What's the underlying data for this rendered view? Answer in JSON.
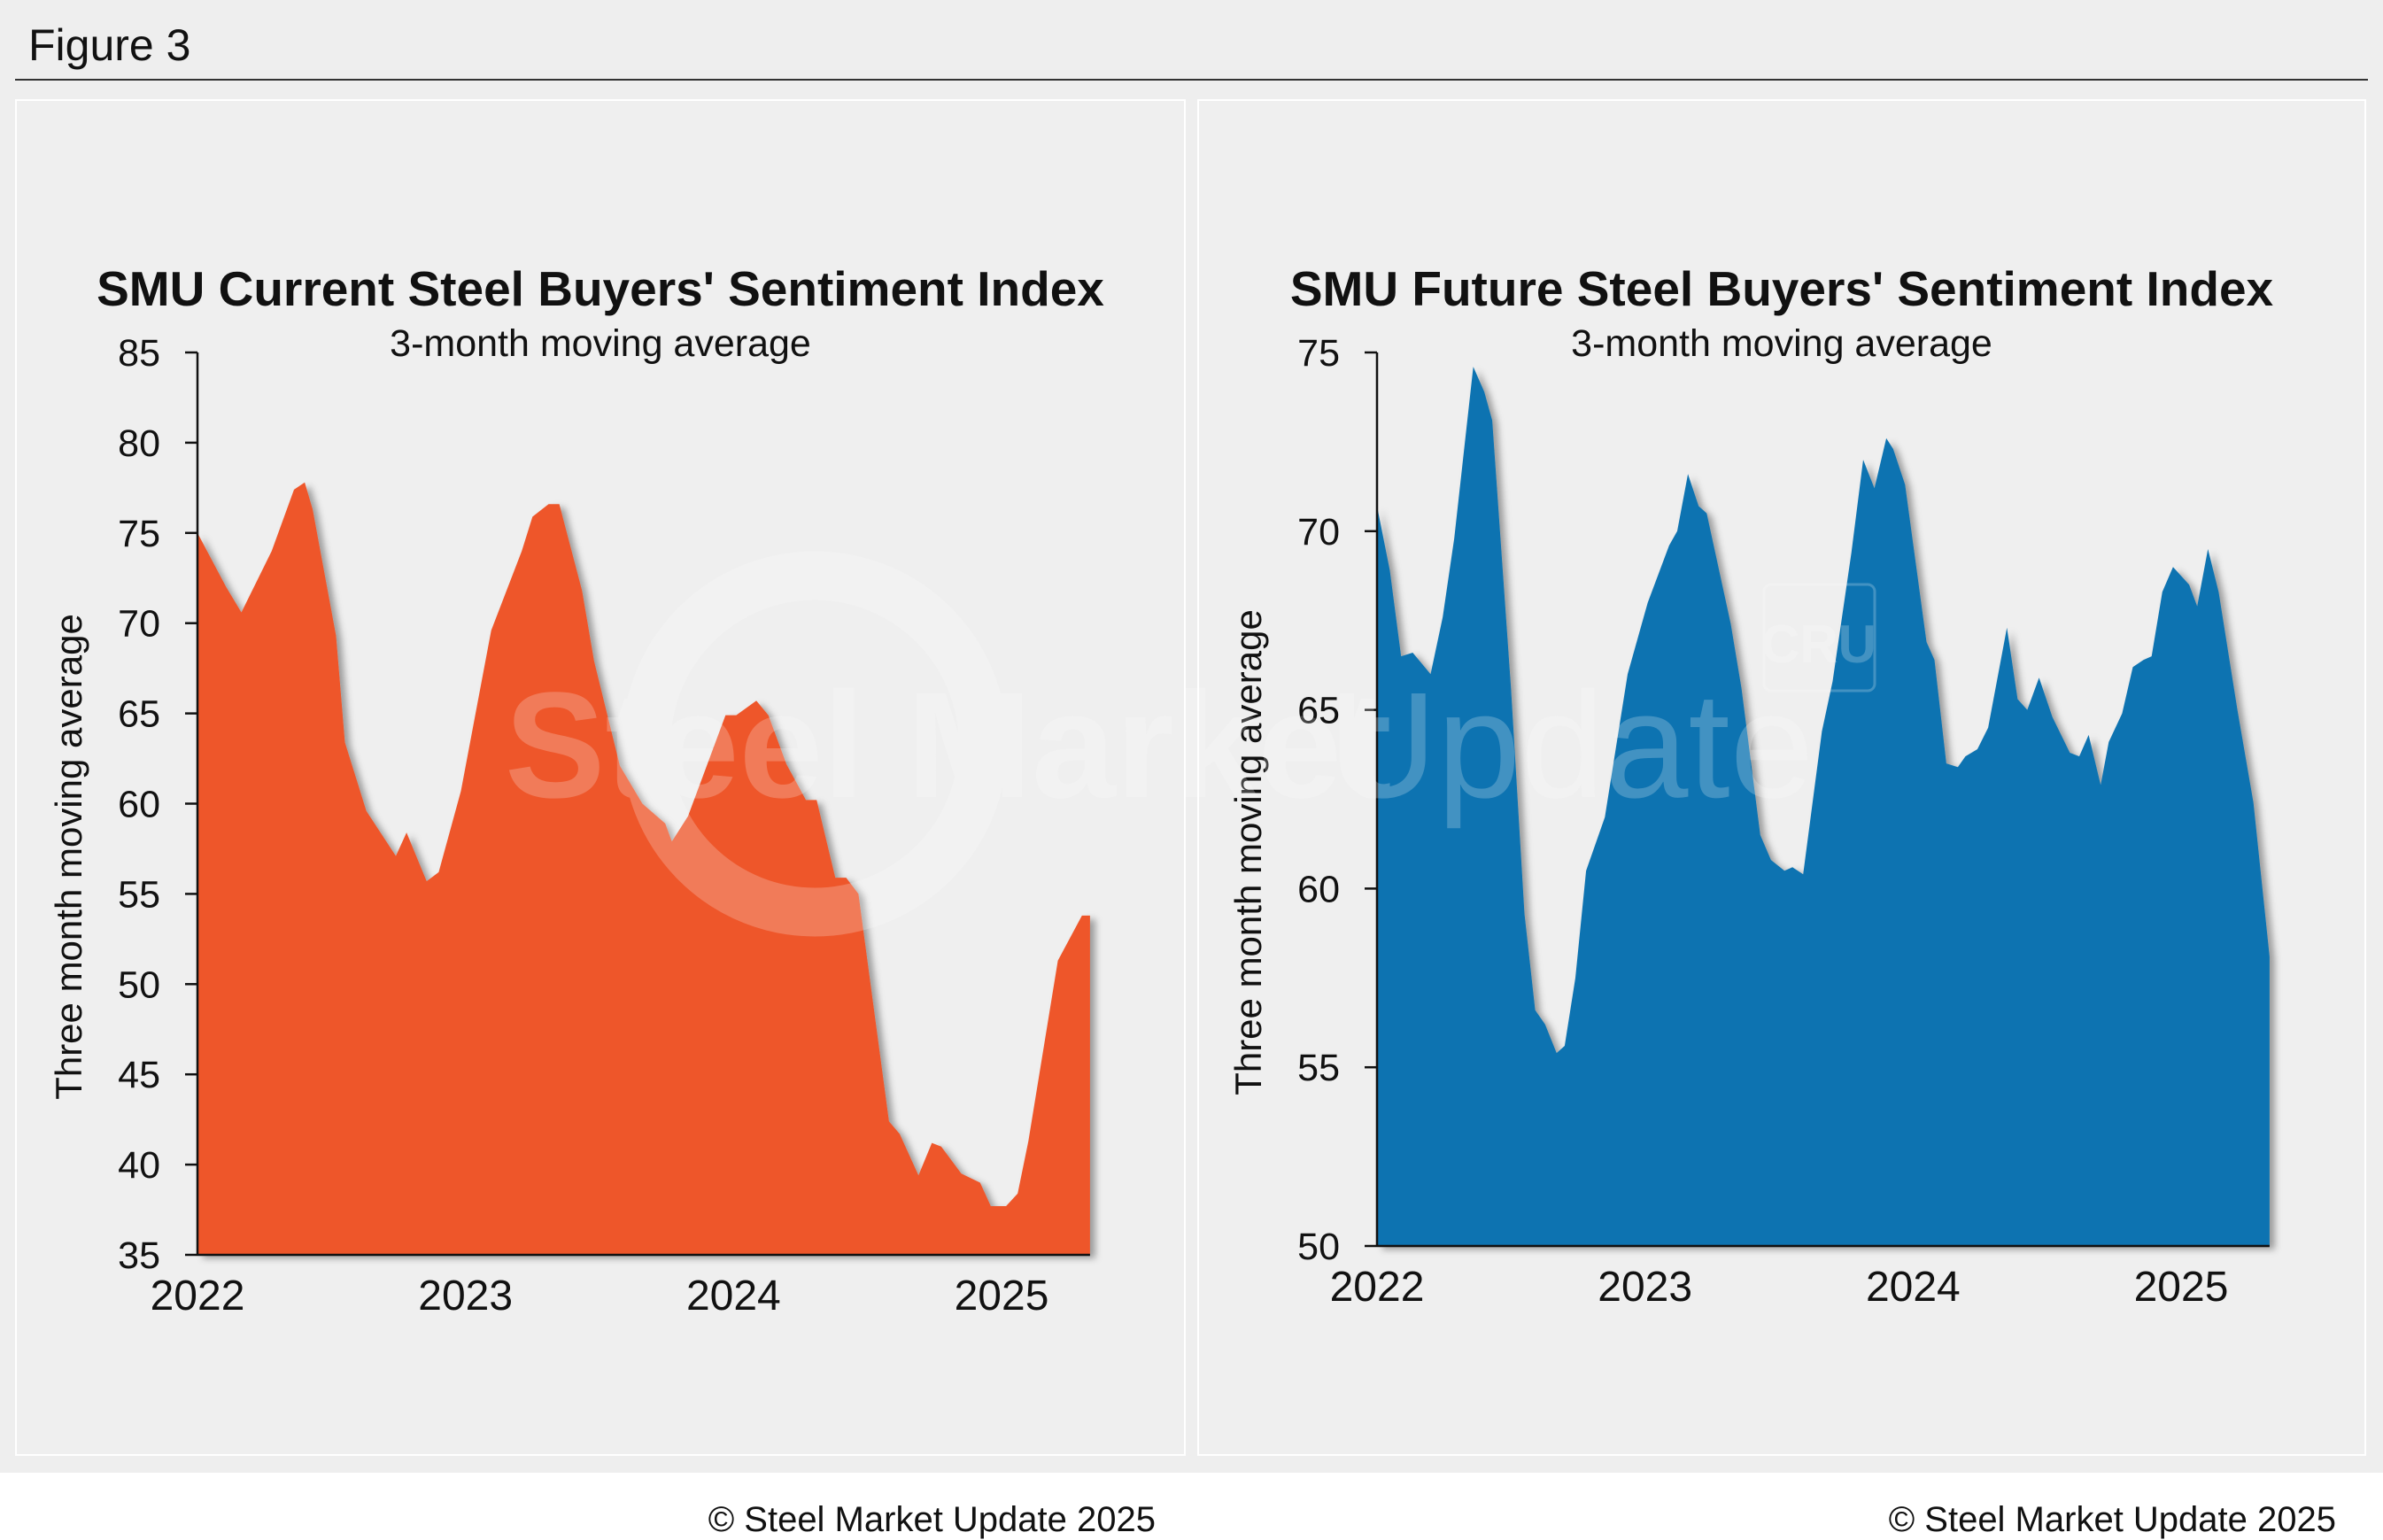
{
  "figure_label": "Figure 3",
  "watermark": {
    "text_bold": "Steel Market",
    "text_light": "Update",
    "badge": "CRU"
  },
  "chart_data": [
    {
      "type": "area",
      "title": "SMU Current Steel Buyers' Sentiment Index",
      "subtitle": "3-month moving average",
      "ylabel": "Three month moving average",
      "xlabel": "",
      "color": "#ee572b",
      "ylim": [
        35,
        85
      ],
      "yticks": [
        "35",
        "40",
        "45",
        "50",
        "55",
        "60",
        "65",
        "70",
        "75",
        "80",
        "85"
      ],
      "xlim": [
        2022,
        2025.33
      ],
      "xticks": [
        "2022",
        "2023",
        "2024",
        "2025"
      ],
      "grid": false,
      "copyright": "© Steel Market Update 2025",
      "x": [
        2022.0,
        2022.107,
        2022.164,
        2022.277,
        2022.36,
        2022.4,
        2022.43,
        2022.517,
        2022.55,
        2022.63,
        2022.74,
        2022.78,
        2022.855,
        2022.9,
        2022.983,
        2023.096,
        2023.21,
        2023.25,
        2023.31,
        2023.35,
        2023.435,
        2023.48,
        2023.576,
        2023.66,
        2023.745,
        2023.77,
        2023.83,
        2023.97,
        2024.01,
        2024.085,
        2024.13,
        2024.197,
        2024.27,
        2024.31,
        2024.38,
        2024.42,
        2024.466,
        2024.58,
        2024.62,
        2024.69,
        2024.74,
        2024.775,
        2024.85,
        2024.92,
        2024.96,
        2025.017,
        2025.06,
        2025.1,
        2025.21,
        2025.3,
        2025.33
      ],
      "y": [
        75.0,
        72.0,
        70.6,
        74.0,
        77.4,
        77.8,
        76.3,
        69.3,
        63.4,
        59.6,
        57.1,
        58.4,
        55.7,
        56.2,
        60.7,
        69.6,
        74.0,
        75.9,
        76.6,
        76.6,
        71.8,
        67.9,
        62.1,
        60.0,
        58.9,
        57.9,
        59.3,
        64.9,
        64.9,
        65.7,
        64.9,
        62.2,
        60.2,
        60.2,
        55.9,
        55.9,
        55.0,
        42.4,
        41.7,
        39.4,
        41.2,
        41.0,
        39.5,
        39.0,
        37.7,
        37.7,
        38.4,
        41.3,
        51.3,
        53.8,
        53.8
      ]
    },
    {
      "type": "area",
      "title": "SMU Future Steel Buyers' Sentiment Index",
      "subtitle": "3-month moving average",
      "ylabel": "Three month moving average",
      "xlabel": "",
      "color": "#1173b1",
      "ylim": [
        50,
        75
      ],
      "yticks": [
        "50",
        "55",
        "60",
        "65",
        "70",
        "75"
      ],
      "xlim": [
        2022,
        2025.33
      ],
      "xticks": [
        "2022",
        "2023",
        "2024",
        "2025"
      ],
      "grid": false,
      "copyright": "© Steel Market Update 2025",
      "x": [
        2022.0,
        2022.048,
        2022.09,
        2022.133,
        2022.2,
        2022.245,
        2022.288,
        2022.359,
        2022.4,
        2022.43,
        2022.5,
        2022.55,
        2022.59,
        2022.627,
        2022.67,
        2022.7,
        2022.74,
        2022.78,
        2022.85,
        2022.935,
        2023.01,
        2023.09,
        2023.12,
        2023.16,
        2023.2,
        2023.23,
        2023.32,
        2023.36,
        2023.43,
        2023.47,
        2023.52,
        2023.55,
        2023.59,
        2023.66,
        2023.7,
        2023.77,
        2023.814,
        2023.856,
        2023.9,
        2023.926,
        2023.97,
        2024.05,
        2024.08,
        2024.124,
        2024.167,
        2024.195,
        2024.24,
        2024.28,
        2024.35,
        2024.39,
        2024.426,
        2024.47,
        2024.52,
        2024.585,
        2024.62,
        2024.655,
        2024.7,
        2024.73,
        2024.78,
        2024.82,
        2024.86,
        2024.89,
        2024.93,
        2024.97,
        2025.03,
        2025.06,
        2025.1,
        2025.14,
        2025.21,
        2025.27,
        2025.33
      ],
      "y": [
        70.7,
        68.9,
        66.5,
        66.6,
        66.0,
        67.6,
        69.8,
        74.6,
        73.9,
        73.1,
        65.6,
        59.3,
        56.6,
        56.2,
        55.4,
        55.6,
        57.5,
        60.5,
        62.0,
        66.0,
        68.0,
        69.6,
        70.0,
        71.6,
        70.7,
        70.5,
        67.4,
        65.6,
        61.5,
        60.8,
        60.5,
        60.6,
        60.4,
        64.4,
        65.8,
        69.4,
        72.0,
        71.2,
        72.6,
        72.3,
        71.3,
        66.9,
        66.4,
        63.5,
        63.4,
        63.7,
        63.9,
        64.5,
        67.3,
        65.3,
        65.0,
        65.9,
        64.8,
        63.8,
        63.7,
        64.3,
        62.9,
        64.1,
        64.9,
        66.2,
        66.4,
        66.5,
        68.3,
        69.0,
        68.5,
        67.9,
        69.5,
        68.3,
        65.0,
        62.4,
        58.1
      ]
    }
  ]
}
